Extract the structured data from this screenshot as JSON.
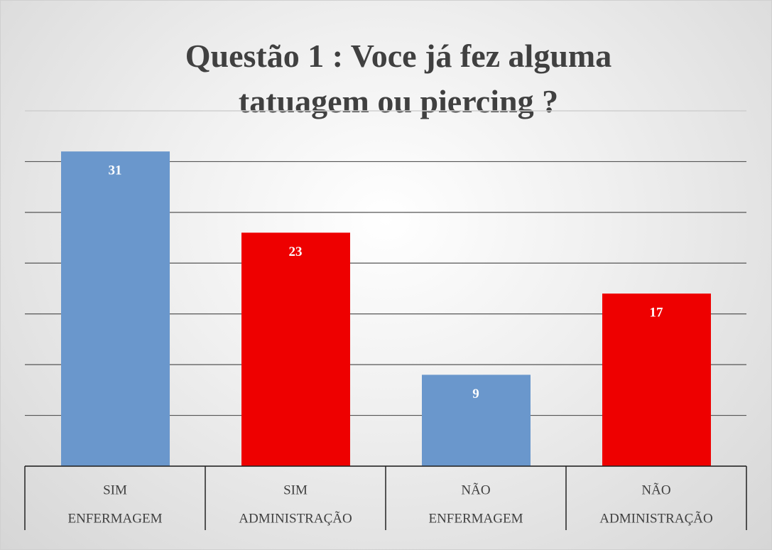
{
  "chart_data": {
    "type": "bar",
    "title": "Questão 1 : Voce já fez alguma tatuagem ou piercing ?",
    "categories": [
      [
        "SIM",
        "ENFERMAGEM"
      ],
      [
        "SIM",
        "ADMINISTRAÇÃO"
      ],
      [
        "NÃO",
        "ENFERMAGEM"
      ],
      [
        "NÃO",
        "ADMINISTRAÇÃO"
      ]
    ],
    "values": [
      31,
      23,
      9,
      17
    ],
    "colors": [
      "#6a97cc",
      "#ee0000",
      "#6a97cc",
      "#ee0000"
    ],
    "ylim": [
      0,
      35
    ],
    "yticks": [
      0,
      5,
      10,
      15,
      20,
      25,
      30,
      35
    ],
    "grid": true
  }
}
